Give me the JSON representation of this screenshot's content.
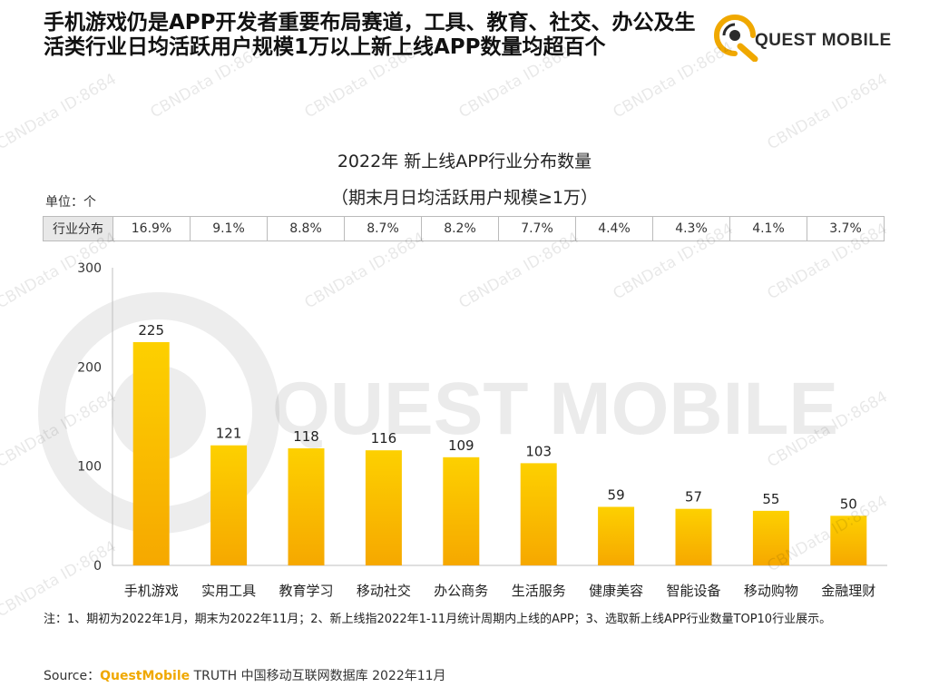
{
  "page": {
    "title": "手机游戏仍是APP开发者重要布局赛道，工具、教育、社交、办公及生活类行业日均活跃用户规模1万以上新上线APP数量均超百个",
    "brand": "QUEST MOBILE",
    "unit": "单位：个",
    "note": "注：1、期初为2022年1月，期末为2022年11月；2、新上线指2022年1-11月统计周期内上线的APP；3、选取新上线APP行业数量TOP10行业展示。",
    "source_prefix": "Source：",
    "source_brand": "QuestMobile",
    "source_rest": " TRUTH 中国移动互联网数据库 2022年11月",
    "watermarks": [
      "CBNData ID:8684",
      "QUEST MOBILE"
    ]
  },
  "share_row": {
    "header": "行业分布",
    "values": [
      "16.9%",
      "9.1%",
      "8.8%",
      "8.7%",
      "8.2%",
      "7.7%",
      "4.4%",
      "4.3%",
      "4.1%",
      "3.7%"
    ]
  },
  "colors": {
    "bar_top": "#fdd000",
    "bar_bottom": "#f6a800",
    "brand": "#f0a800",
    "axis": "#bfbfbf"
  },
  "chart_data": {
    "type": "bar",
    "title": "2022年 新上线APP行业分布数量",
    "subtitle": "（期末月日均活跃用户规模≥1万）",
    "categories": [
      "手机游戏",
      "实用工具",
      "教育学习",
      "移动社交",
      "办公商务",
      "生活服务",
      "健康美容",
      "智能设备",
      "移动购物",
      "金融理财"
    ],
    "values": [
      225,
      121,
      118,
      116,
      109,
      103,
      59,
      57,
      55,
      50
    ],
    "ylim": [
      0,
      300
    ],
    "yticks": [
      0,
      100,
      200,
      300
    ],
    "grid": false,
    "data_labels": true
  }
}
